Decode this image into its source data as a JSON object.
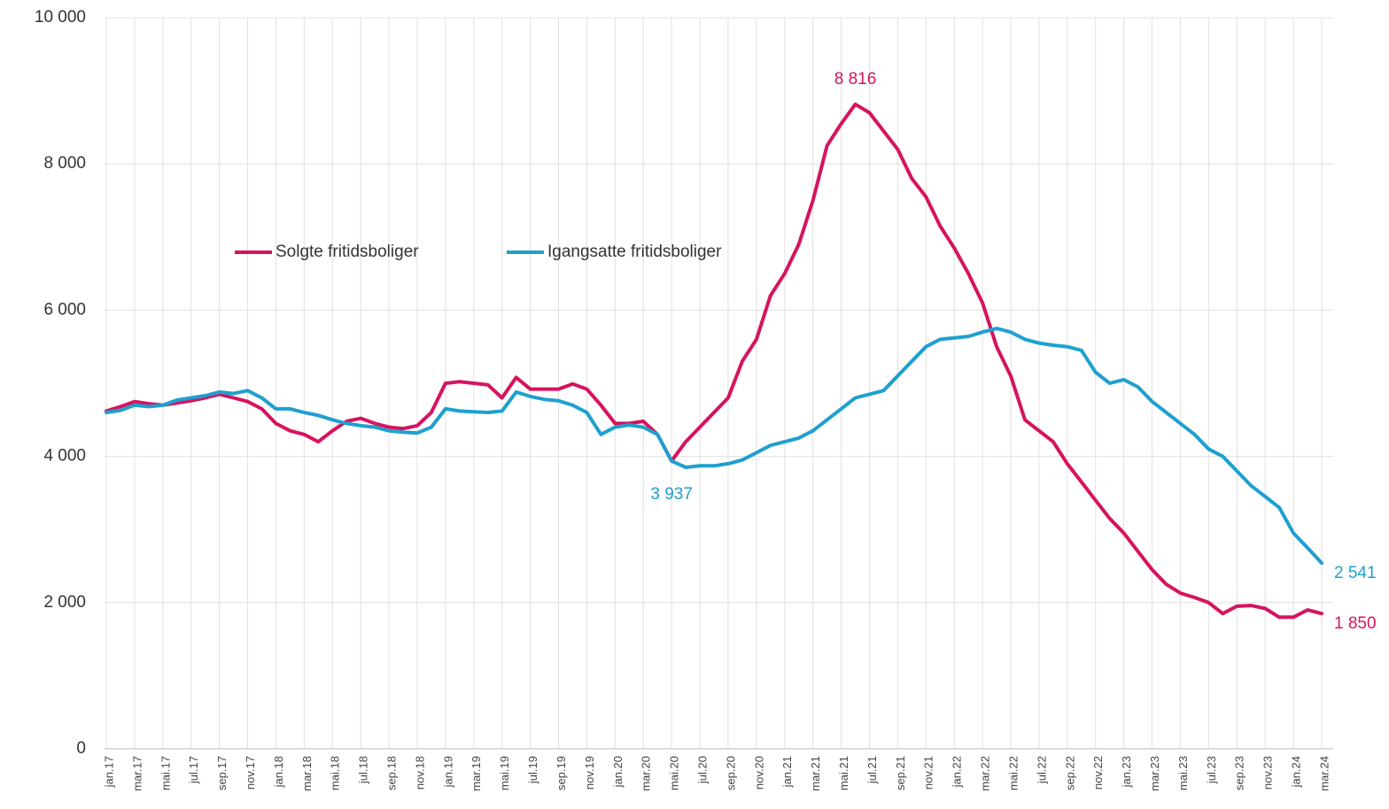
{
  "chart_data": {
    "type": "line",
    "categories": [
      "jan.17",
      null,
      "mar.17",
      null,
      "mai.17",
      null,
      "jul.17",
      null,
      "sep.17",
      null,
      "nov.17",
      null,
      "jan.18",
      null,
      "mar.18",
      null,
      "mai.18",
      null,
      "jul.18",
      null,
      "sep.18",
      null,
      "nov.18",
      null,
      "jan.19",
      null,
      "mar.19",
      null,
      "mai.19",
      null,
      "jul.19",
      null,
      "sep.19",
      null,
      "nov.19",
      null,
      "jan.20",
      null,
      "mar.20",
      null,
      "mai.20",
      null,
      "jul.20",
      null,
      "sep.20",
      null,
      "nov.20",
      null,
      "jan.21",
      null,
      "mar.21",
      null,
      "mai.21",
      null,
      "jul.21",
      null,
      "sep.21",
      null,
      "nov.21",
      null,
      "jan.22",
      null,
      "mar.22",
      null,
      "mai.22",
      null,
      "jul.22",
      null,
      "sep.22",
      null,
      "nov.22",
      null,
      "jan.23",
      null,
      "mar.23",
      null,
      "mai.23",
      null,
      "jul.23",
      null,
      "sep.23",
      null,
      "nov.23",
      null,
      "jan.24",
      null,
      "mar.24"
    ],
    "series": [
      {
        "name": "Solgte fritidsboliger",
        "color": "#d6135f",
        "values": [
          4620,
          4680,
          4750,
          4720,
          4700,
          4730,
          4760,
          4800,
          4850,
          4800,
          4750,
          4650,
          4450,
          4350,
          4300,
          4200,
          4350,
          4480,
          4520,
          4450,
          4400,
          4380,
          4420,
          4600,
          5000,
          5020,
          5000,
          4980,
          4800,
          5080,
          4920,
          4920,
          4920,
          4990,
          4920,
          4700,
          4450,
          4450,
          4480,
          4300,
          3937,
          4200,
          4400,
          4600,
          4800,
          5300,
          5600,
          6200,
          6500,
          6900,
          7500,
          8250,
          8550,
          8816,
          8700,
          8450,
          8200,
          7800,
          7550,
          7150,
          6850,
          6500,
          6100,
          5500,
          5100,
          4500,
          4350,
          4200,
          3900,
          3650,
          3400,
          3150,
          2950,
          2700,
          2450,
          2250,
          2130,
          2070,
          2000,
          1850,
          1950,
          1960,
          1920,
          1800,
          1800,
          1900,
          1850
        ],
        "value_labels": [
          null,
          null,
          null,
          null,
          null,
          null,
          null,
          null,
          null,
          null,
          null,
          null,
          null,
          null,
          null,
          null,
          null,
          null,
          null,
          null,
          null,
          null,
          null,
          null,
          null,
          null,
          null,
          null,
          null,
          null,
          null,
          null,
          null,
          null,
          null,
          null,
          null,
          null,
          null,
          null,
          null,
          null,
          null,
          null,
          null,
          null,
          null,
          null,
          null,
          null,
          null,
          null,
          null,
          "8 816",
          null,
          null,
          null,
          null,
          null,
          null,
          null,
          null,
          null,
          null,
          null,
          null,
          null,
          null,
          null,
          null,
          null,
          null,
          null,
          null,
          null,
          null,
          null,
          null,
          null,
          null,
          null,
          null,
          null,
          null,
          null,
          null,
          "1 850"
        ]
      },
      {
        "name": "Igangsatte fritidsboliger",
        "color": "#1fa0cf",
        "values": [
          4600,
          4630,
          4700,
          4680,
          4700,
          4770,
          4800,
          4830,
          4880,
          4860,
          4900,
          4800,
          4650,
          4650,
          4600,
          4560,
          4500,
          4450,
          4420,
          4400,
          4350,
          4330,
          4320,
          4400,
          4650,
          4620,
          4610,
          4600,
          4620,
          4880,
          4820,
          4780,
          4760,
          4700,
          4600,
          4300,
          4400,
          4430,
          4400,
          4300,
          3937,
          3850,
          3870,
          3870,
          3900,
          3950,
          4050,
          4150,
          4200,
          4250,
          4350,
          4500,
          4650,
          4800,
          4850,
          4900,
          5100,
          5300,
          5500,
          5600,
          5620,
          5640,
          5700,
          5750,
          5700,
          5600,
          5550,
          5520,
          5500,
          5450,
          5150,
          5000,
          5050,
          4950,
          4750,
          4600,
          4450,
          4300,
          4100,
          4000,
          3800,
          3600,
          3450,
          3300,
          2950,
          2750,
          2541
        ],
        "value_labels": [
          null,
          null,
          null,
          null,
          null,
          null,
          null,
          null,
          null,
          null,
          null,
          null,
          null,
          null,
          null,
          null,
          null,
          null,
          null,
          null,
          null,
          null,
          null,
          null,
          null,
          null,
          null,
          null,
          null,
          null,
          null,
          null,
          null,
          null,
          null,
          null,
          null,
          null,
          null,
          null,
          "3 937",
          null,
          null,
          null,
          null,
          null,
          null,
          null,
          null,
          null,
          null,
          null,
          null,
          null,
          null,
          null,
          null,
          null,
          null,
          null,
          null,
          null,
          null,
          null,
          null,
          null,
          null,
          null,
          null,
          null,
          null,
          null,
          null,
          null,
          null,
          null,
          null,
          null,
          null,
          null,
          null,
          null,
          null,
          null,
          null,
          null,
          "2 541"
        ]
      }
    ],
    "ylim": [
      0,
      10000
    ],
    "yticks": [
      0,
      {
        "value": 2000,
        "label": "2 000"
      },
      {
        "value": 4000,
        "label": "4 000"
      },
      {
        "value": 6000,
        "label": "6 000"
      },
      {
        "value": 8000,
        "label": "8 000"
      },
      {
        "value": 10000,
        "label": "10 000"
      }
    ],
    "grid": true,
    "legend": "top-left"
  }
}
